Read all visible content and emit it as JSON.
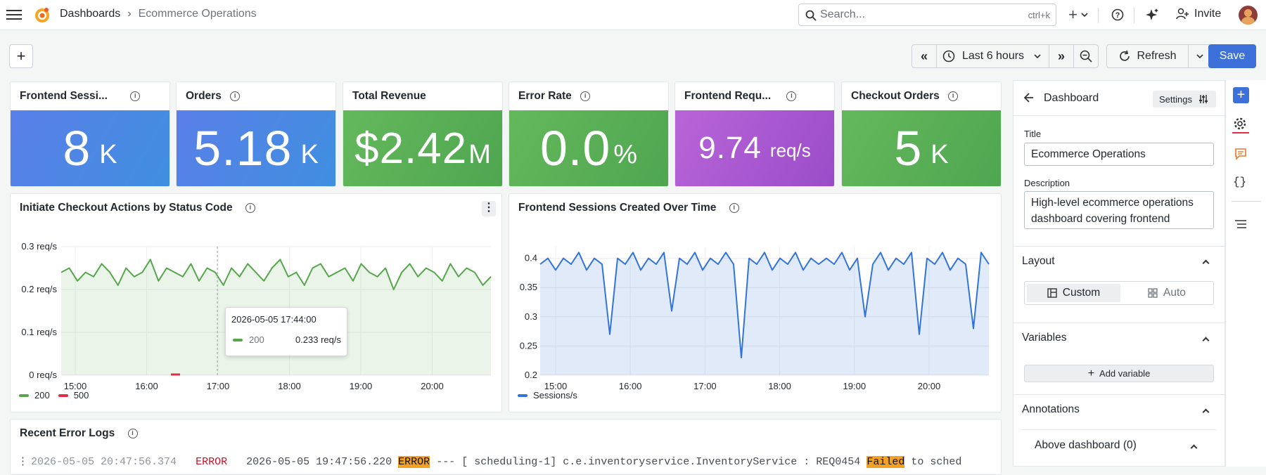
{
  "breadcrumb": {
    "root": "Dashboards",
    "separator": "›",
    "current": "Ecommerce Operations"
  },
  "search": {
    "placeholder": "Search...",
    "shortcut": "ctrl+k"
  },
  "topbar": {
    "invite_label": "Invite"
  },
  "toolbar": {
    "time_range": "Last 6 hours",
    "refresh_label": "Refresh",
    "save_label": "Save"
  },
  "stats": [
    {
      "title": "Frontend Sessi...",
      "value": "8",
      "unit": "K",
      "color": "blue"
    },
    {
      "title": "Orders",
      "value": "5.18",
      "unit": "K",
      "color": "blue"
    },
    {
      "title": "Total Revenue",
      "value": "$2.42",
      "unit": "M",
      "color": "green"
    },
    {
      "title": "Error Rate",
      "value": "0.0",
      "unit": "%",
      "color": "green"
    },
    {
      "title": "Frontend Requ...",
      "value": "9.74",
      "unit": "req/s",
      "color": "purple"
    },
    {
      "title": "Checkout Orders",
      "value": "5",
      "unit": "K",
      "color": "green"
    }
  ],
  "panel_checkout": {
    "title": "Initiate Checkout Actions by Status Code",
    "legend": [
      "200",
      "500"
    ],
    "tooltip": {
      "time": "2026-05-05 17:44:00",
      "series": "200",
      "value": "0.233 req/s"
    }
  },
  "panel_sessions": {
    "title": "Frontend Sessions Created Over Time",
    "legend": [
      "Sessions/s"
    ]
  },
  "logs": {
    "title": "Recent Error Logs",
    "line": {
      "time": "2026-05-05 20:47:56.374",
      "level": "ERROR",
      "msg1": "2026-05-05 19:47:56.220",
      "hl1": "ERROR",
      "msg2": "--- [   scheduling-1] c.e.inventoryservice.InventoryService    : REQ0454",
      "hl2": "Failed",
      "msg3": "to sched"
    }
  },
  "sidebar": {
    "title": "Dashboard",
    "settings_label": "Settings",
    "title_label": "Title",
    "title_value": "Ecommerce Operations",
    "desc_label": "Description",
    "desc_value": "High-level ecommerce operations dashboard covering frontend",
    "layout_label": "Layout",
    "layout_custom": "Custom",
    "layout_auto": "Auto",
    "variables_label": "Variables",
    "add_variable": "Add variable",
    "annotations_label": "Annotations",
    "above_dashboard": "Above dashboard (0)"
  },
  "colors": {
    "blue": "#4c84e6",
    "green": "#5cb05b",
    "purple": "#a34fd0",
    "accent": "#3d71d9",
    "highlight": "#f2a024"
  },
  "chart_data": [
    {
      "type": "line",
      "title": "Initiate Checkout Actions by Status Code",
      "x_ticks": [
        "15:00",
        "16:00",
        "17:00",
        "18:00",
        "19:00",
        "20:00"
      ],
      "y_ticks": [
        "0 req/s",
        "0.1 req/s",
        "0.2 req/s",
        "0.3 req/s"
      ],
      "ylim": [
        0,
        0.3
      ],
      "series": [
        {
          "name": "200",
          "color": "#56a64b",
          "values": [
            0.24,
            0.25,
            0.22,
            0.24,
            0.23,
            0.26,
            0.24,
            0.21,
            0.25,
            0.23,
            0.24,
            0.27,
            0.22,
            0.25,
            0.24,
            0.23,
            0.26,
            0.22,
            0.25,
            0.24,
            0.21,
            0.25,
            0.23,
            0.26,
            0.24,
            0.22,
            0.25,
            0.27,
            0.23,
            0.24,
            0.21,
            0.25,
            0.26,
            0.23,
            0.24,
            0.25,
            0.22,
            0.26,
            0.24,
            0.23,
            0.25,
            0.2,
            0.24,
            0.26,
            0.23,
            0.25,
            0.24,
            0.22,
            0.26,
            0.23,
            0.25,
            0.24,
            0.21,
            0.23
          ]
        },
        {
          "name": "500",
          "color": "#e02f44",
          "values": [
            0.0
          ]
        }
      ]
    },
    {
      "type": "area",
      "title": "Frontend Sessions Created Over Time",
      "x_ticks": [
        "15:00",
        "16:00",
        "17:00",
        "18:00",
        "19:00",
        "20:00"
      ],
      "y_ticks": [
        "0.2",
        "0.25",
        "0.3",
        "0.35",
        "0.4"
      ],
      "ylim": [
        0.2,
        0.42
      ],
      "series": [
        {
          "name": "Sessions/s",
          "color": "#3274d9",
          "values": [
            0.39,
            0.4,
            0.38,
            0.4,
            0.39,
            0.41,
            0.38,
            0.4,
            0.39,
            0.27,
            0.4,
            0.39,
            0.41,
            0.38,
            0.4,
            0.39,
            0.41,
            0.31,
            0.4,
            0.39,
            0.41,
            0.38,
            0.4,
            0.39,
            0.41,
            0.39,
            0.23,
            0.4,
            0.39,
            0.41,
            0.38,
            0.4,
            0.39,
            0.41,
            0.38,
            0.4,
            0.39,
            0.4,
            0.39,
            0.41,
            0.38,
            0.4,
            0.3,
            0.39,
            0.41,
            0.38,
            0.4,
            0.39,
            0.41,
            0.27,
            0.4,
            0.39,
            0.41,
            0.38,
            0.4,
            0.39,
            0.28,
            0.41,
            0.39
          ]
        }
      ]
    }
  ]
}
